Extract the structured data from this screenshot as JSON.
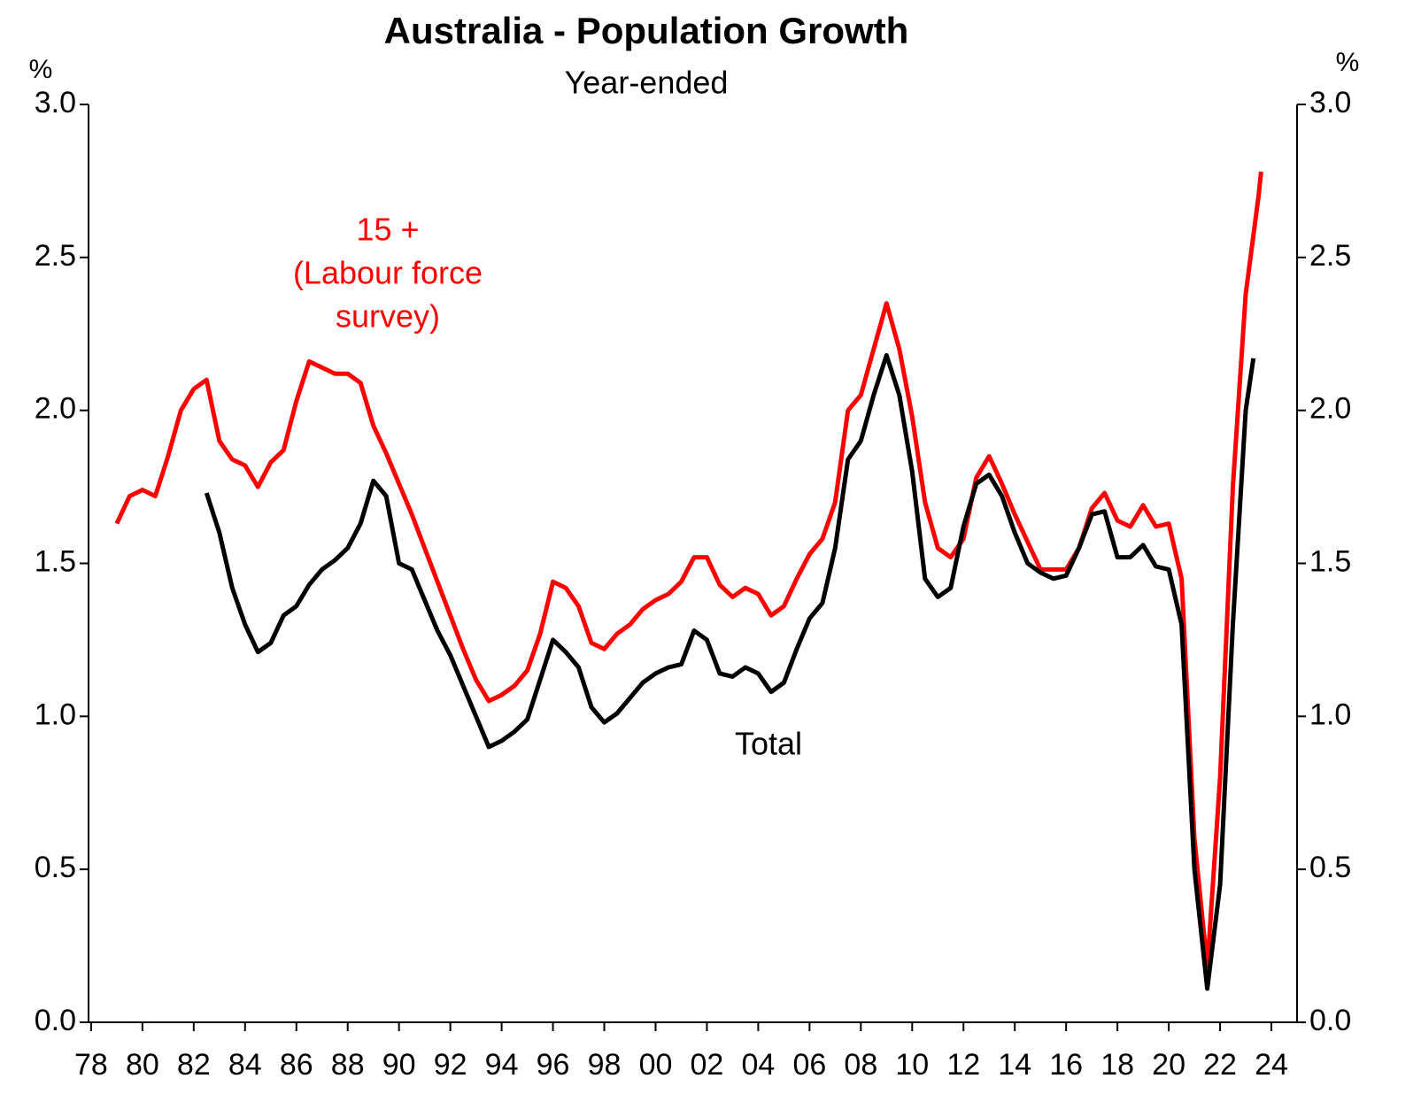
{
  "chart_data": {
    "type": "line",
    "title": "Australia - Population Growth",
    "subtitle": "Year-ended",
    "y_label": "%",
    "y2_label": "%",
    "xlim": [
      1977.9,
      2025
    ],
    "xticks": [
      {
        "value": 1978,
        "label": "78"
      },
      {
        "value": 1980,
        "label": "80"
      },
      {
        "value": 1982,
        "label": "82"
      },
      {
        "value": 1984,
        "label": "84"
      },
      {
        "value": 1986,
        "label": "86"
      },
      {
        "value": 1988,
        "label": "88"
      },
      {
        "value": 1990,
        "label": "90"
      },
      {
        "value": 1992,
        "label": "92"
      },
      {
        "value": 1994,
        "label": "94"
      },
      {
        "value": 1996,
        "label": "96"
      },
      {
        "value": 1998,
        "label": "98"
      },
      {
        "value": 2000,
        "label": "00"
      },
      {
        "value": 2002,
        "label": "02"
      },
      {
        "value": 2004,
        "label": "04"
      },
      {
        "value": 2006,
        "label": "06"
      },
      {
        "value": 2008,
        "label": "08"
      },
      {
        "value": 2010,
        "label": "10"
      },
      {
        "value": 2012,
        "label": "12"
      },
      {
        "value": 2014,
        "label": "14"
      },
      {
        "value": 2016,
        "label": "16"
      },
      {
        "value": 2018,
        "label": "18"
      },
      {
        "value": 2020,
        "label": "20"
      },
      {
        "value": 2022,
        "label": "22"
      },
      {
        "value": 2024,
        "label": "24"
      }
    ],
    "ylim": [
      0,
      3
    ],
    "yticks": [
      {
        "value": 0,
        "label": "0.0"
      },
      {
        "value": 0.5,
        "label": "0.5"
      },
      {
        "value": 1,
        "label": "1.0"
      },
      {
        "value": 1.5,
        "label": "1.5"
      },
      {
        "value": 2,
        "label": "2.0"
      },
      {
        "value": 2.5,
        "label": "2.5"
      },
      {
        "value": 3,
        "label": "3.0"
      }
    ],
    "y2lim": [
      0,
      3
    ],
    "y2ticks": [
      {
        "value": 0,
        "label": "0.0"
      },
      {
        "value": 0.5,
        "label": "0.5"
      },
      {
        "value": 1,
        "label": "1.0"
      },
      {
        "value": 1.5,
        "label": "1.5"
      },
      {
        "value": 2,
        "label": "2.0"
      },
      {
        "value": 2.5,
        "label": "2.5"
      },
      {
        "value": 3,
        "label": "3.0"
      }
    ],
    "annotations": [
      {
        "lines": [
          "15 +",
          "(Labour force",
          "survey)"
        ],
        "color": "#ff0000"
      },
      {
        "lines": [
          "Total"
        ],
        "color": "#000000"
      }
    ],
    "series": [
      {
        "name": "15 +",
        "color": "#ff0000",
        "x": [
          1979,
          1979.5,
          1980,
          1980.5,
          1981,
          1981.5,
          1982,
          1982.5,
          1983,
          1983.5,
          1984,
          1984.5,
          1985,
          1985.5,
          1986,
          1986.5,
          1987,
          1987.5,
          1988,
          1988.5,
          1989,
          1989.5,
          1990,
          1990.5,
          1991,
          1991.5,
          1992,
          1992.5,
          1993,
          1993.5,
          1994,
          1994.5,
          1995,
          1995.5,
          1996,
          1996.5,
          1997,
          1997.5,
          1998,
          1998.5,
          1999,
          1999.5,
          2000,
          2000.5,
          2001,
          2001.5,
          2002,
          2002.5,
          2003,
          2003.5,
          2004,
          2004.5,
          2005,
          2005.5,
          2006,
          2006.5,
          2007,
          2007.5,
          2008,
          2008.5,
          2009,
          2009.5,
          2010,
          2010.5,
          2011,
          2011.5,
          2012,
          2012.5,
          2013,
          2013.5,
          2014,
          2014.5,
          2015,
          2015.5,
          2016,
          2016.5,
          2017,
          2017.5,
          2018,
          2018.5,
          2019,
          2019.5,
          2020,
          2020.5,
          2021,
          2021.5,
          2022,
          2022.5,
          2023,
          2023.5,
          2023.6
        ],
        "values": [
          1.63,
          1.72,
          1.74,
          1.72,
          1.85,
          2.0,
          2.07,
          2.1,
          1.9,
          1.84,
          1.82,
          1.75,
          1.83,
          1.87,
          2.03,
          2.16,
          2.14,
          2.12,
          2.12,
          2.09,
          1.95,
          1.86,
          1.76,
          1.66,
          1.55,
          1.44,
          1.33,
          1.22,
          1.12,
          1.05,
          1.07,
          1.1,
          1.15,
          1.27,
          1.44,
          1.42,
          1.36,
          1.24,
          1.22,
          1.27,
          1.3,
          1.35,
          1.38,
          1.4,
          1.44,
          1.52,
          1.52,
          1.43,
          1.39,
          1.42,
          1.4,
          1.33,
          1.36,
          1.45,
          1.53,
          1.58,
          1.7,
          2.0,
          2.05,
          2.2,
          2.35,
          2.2,
          1.98,
          1.7,
          1.55,
          1.52,
          1.58,
          1.78,
          1.85,
          1.76,
          1.66,
          1.57,
          1.48,
          1.48,
          1.48,
          1.55,
          1.68,
          1.73,
          1.64,
          1.62,
          1.69,
          1.62,
          1.63,
          1.45,
          0.6,
          0.18,
          0.8,
          1.75,
          2.38,
          2.7,
          2.78
        ]
      },
      {
        "name": "Total",
        "color": "#000000",
        "x": [
          1982.5,
          1983,
          1983.5,
          1984,
          1984.5,
          1985,
          1985.5,
          1986,
          1986.5,
          1987,
          1987.5,
          1988,
          1988.5,
          1989,
          1989.5,
          1990,
          1990.5,
          1991,
          1991.5,
          1992,
          1992.5,
          1993,
          1993.5,
          1994,
          1994.5,
          1995,
          1995.5,
          1996,
          1996.5,
          1997,
          1997.5,
          1998,
          1998.5,
          1999,
          1999.5,
          2000,
          2000.5,
          2001,
          2001.5,
          2002,
          2002.5,
          2003,
          2003.5,
          2004,
          2004.5,
          2005,
          2005.5,
          2006,
          2006.5,
          2007,
          2007.5,
          2008,
          2008.5,
          2009,
          2009.5,
          2010,
          2010.5,
          2011,
          2011.5,
          2012,
          2012.5,
          2013,
          2013.5,
          2014,
          2014.5,
          2015,
          2015.5,
          2016,
          2016.5,
          2017,
          2017.5,
          2018,
          2018.5,
          2019,
          2019.5,
          2020,
          2020.5,
          2021,
          2021.5,
          2022,
          2022.5,
          2023,
          2023.3
        ],
        "values": [
          1.73,
          1.6,
          1.42,
          1.3,
          1.21,
          1.24,
          1.33,
          1.36,
          1.43,
          1.48,
          1.51,
          1.55,
          1.63,
          1.77,
          1.72,
          1.5,
          1.48,
          1.38,
          1.28,
          1.2,
          1.1,
          1.0,
          0.9,
          0.92,
          0.95,
          0.99,
          1.12,
          1.25,
          1.21,
          1.16,
          1.03,
          0.98,
          1.01,
          1.06,
          1.11,
          1.14,
          1.16,
          1.17,
          1.28,
          1.25,
          1.14,
          1.13,
          1.16,
          1.14,
          1.08,
          1.11,
          1.22,
          1.32,
          1.37,
          1.55,
          1.84,
          1.9,
          2.05,
          2.18,
          2.05,
          1.8,
          1.45,
          1.39,
          1.42,
          1.62,
          1.76,
          1.79,
          1.72,
          1.6,
          1.5,
          1.47,
          1.45,
          1.46,
          1.55,
          1.66,
          1.67,
          1.52,
          1.52,
          1.56,
          1.49,
          1.48,
          1.3,
          0.5,
          0.11,
          0.45,
          1.3,
          2.0,
          2.17
        ]
      }
    ]
  }
}
